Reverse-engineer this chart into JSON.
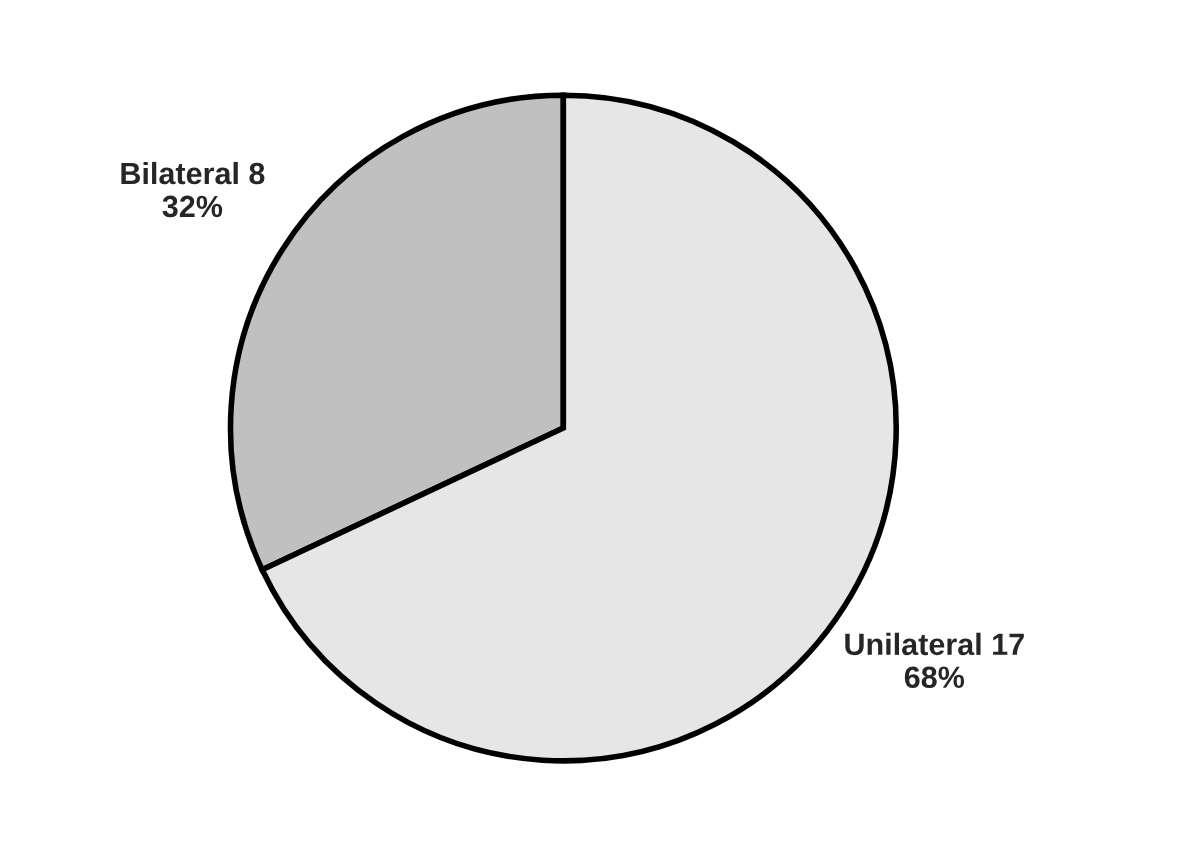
{
  "chart_data": {
    "type": "pie",
    "categories": [
      "Bilateral",
      "Unilateral"
    ],
    "values": [
      8,
      17
    ],
    "value_labels": [
      "8\n32%",
      "17\n68%"
    ],
    "colors": [
      "#c0c0c0",
      "#e6e6e6"
    ]
  }
}
